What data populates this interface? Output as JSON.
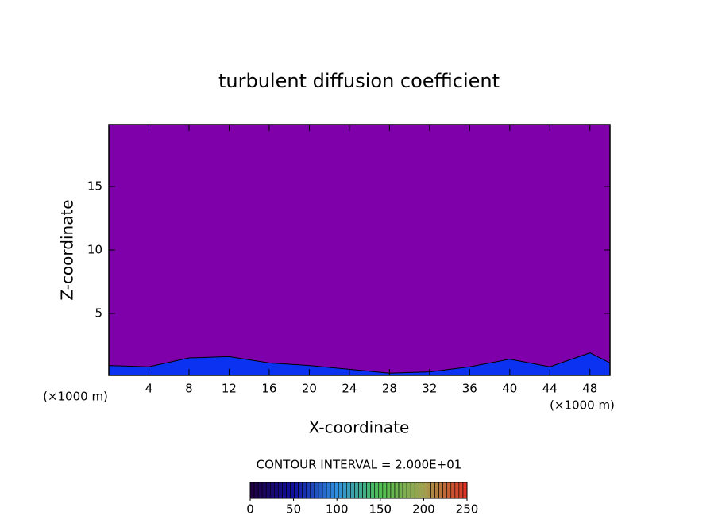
{
  "chart_data": {
    "type": "contour",
    "title": "turbulent diffusion coefficient",
    "xlabel": "X-coordinate",
    "ylabel": "Z-coordinate",
    "x_unit_label": "(×1000 m)",
    "y_unit_label": "(×1000 m)",
    "xlim": [
      0,
      50
    ],
    "xticks": [
      4,
      8,
      12,
      16,
      20,
      24,
      28,
      32,
      36,
      40,
      44,
      48
    ],
    "ylim": [
      0.125,
      19.875
    ],
    "yticks": [
      5,
      10,
      15
    ],
    "background_color": "#7f00aa",
    "layer_color": "#0a32f0",
    "layer_x": [
      0,
      4,
      8,
      12,
      16,
      20,
      24,
      28,
      32,
      36,
      40,
      44,
      48,
      50
    ],
    "layer_top": [
      0.9,
      0.8,
      1.5,
      1.6,
      1.1,
      0.9,
      0.6,
      0.3,
      0.4,
      0.8,
      1.4,
      0.8,
      1.9,
      1.1
    ],
    "colorbar": {
      "label": "CONTOUR INTERVAL = 2.000E+01",
      "lim": [
        0,
        250
      ],
      "ticks": [
        0,
        50,
        100,
        150,
        200,
        250
      ],
      "colors": [
        "#200040",
        "#1010a0",
        "#3090e0",
        "#50c050",
        "#a0a050",
        "#e03020"
      ]
    }
  }
}
